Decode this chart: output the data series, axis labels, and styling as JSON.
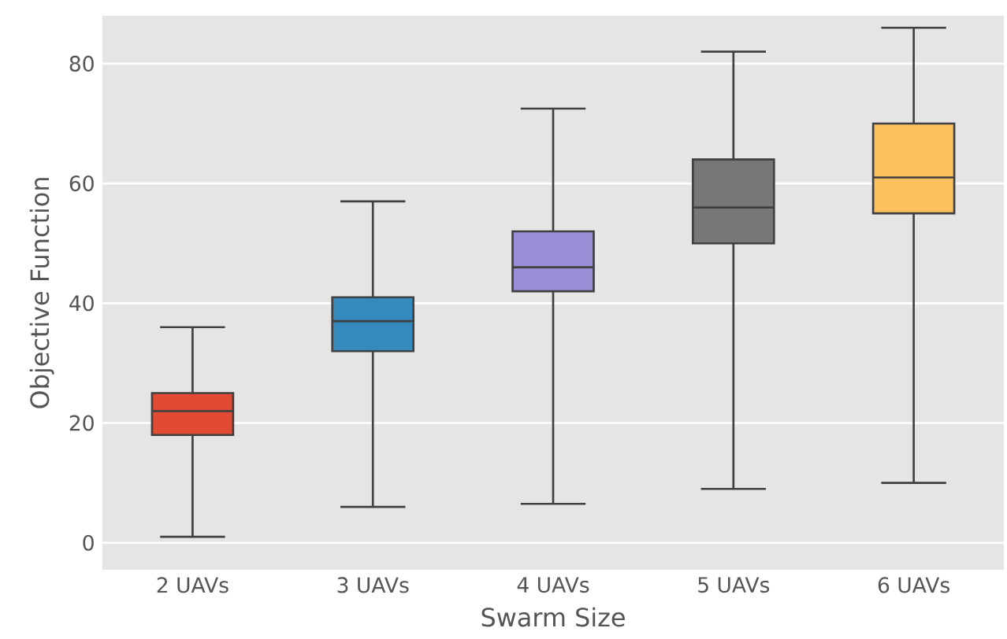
{
  "chart_data": {
    "type": "box",
    "xlabel": "Swarm Size",
    "ylabel": "Objective Function",
    "categories": [
      "2 UAVs",
      "3 UAVs",
      "4 UAVs",
      "5 UAVs",
      "6 UAVs"
    ],
    "colors": [
      "#e24a33",
      "#348abd",
      "#988ed5",
      "#777777",
      "#fbc15e"
    ],
    "boxes": [
      {
        "low": 1,
        "q1": 18,
        "median": 22,
        "q3": 25,
        "high": 36
      },
      {
        "low": 6,
        "q1": 32,
        "median": 37,
        "q3": 41,
        "high": 57
      },
      {
        "low": 6.5,
        "q1": 42,
        "median": 46,
        "q3": 52,
        "high": 72.5
      },
      {
        "low": 9,
        "q1": 50,
        "median": 56,
        "q3": 64,
        "high": 82
      },
      {
        "low": 10,
        "q1": 55,
        "median": 61,
        "q3": 70,
        "high": 86
      }
    ],
    "ylim": [
      -4.5,
      88
    ],
    "yticks": [
      0,
      20,
      40,
      60,
      80
    ],
    "grid": "y"
  }
}
